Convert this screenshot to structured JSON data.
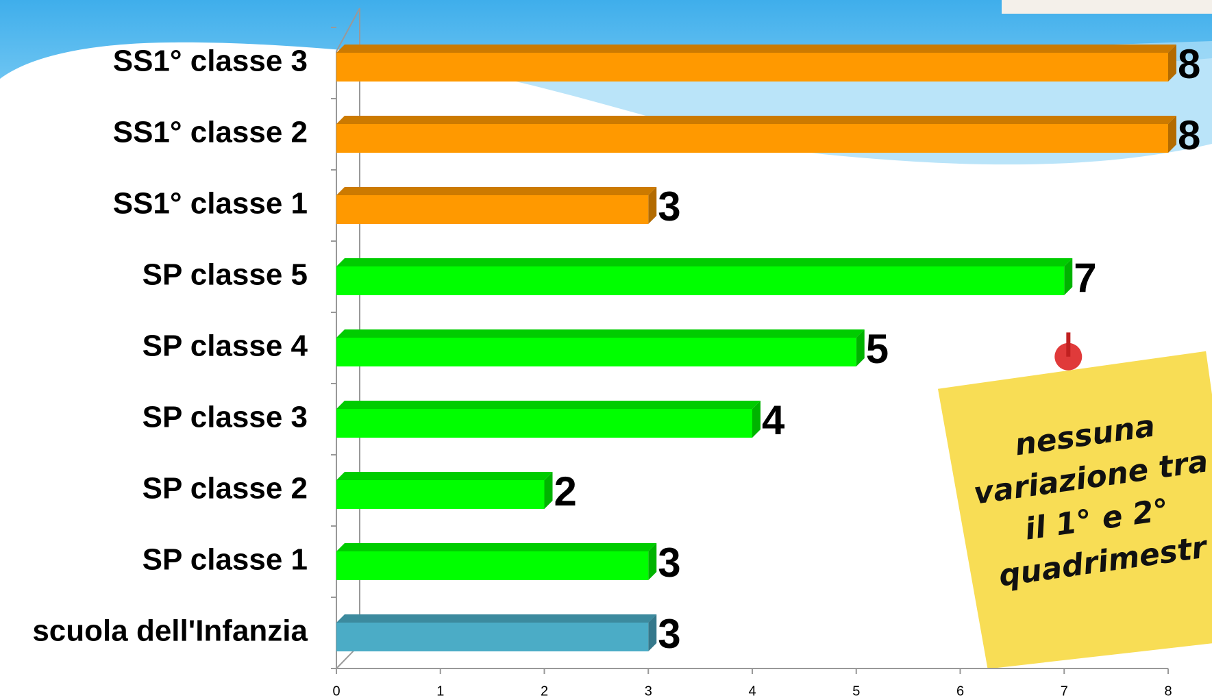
{
  "chart_data": {
    "type": "bar",
    "orientation": "horizontal",
    "categories": [
      "scuola dell'Infanzia",
      "SP classe 1",
      "SP classe 2",
      "SP classe 3",
      "SP classe 4",
      "SP classe 5",
      "SS1° classe 1",
      "SS1° classe 2",
      "SS1° classe 3"
    ],
    "values": [
      3,
      3,
      2,
      4,
      5,
      7,
      3,
      8,
      8
    ],
    "colors": [
      "#4BACC6",
      "#00FF00",
      "#00FF00",
      "#00FF00",
      "#00FF00",
      "#00FF00",
      "#FF9900",
      "#FF9900",
      "#FF9900"
    ],
    "xlim": [
      0,
      8
    ],
    "xticks": [
      0,
      1,
      2,
      3,
      4,
      5,
      6,
      7,
      8
    ],
    "annotation": [
      "nessuna",
      "variazione tra",
      "il 1° e 2°",
      "quadrimestr"
    ]
  }
}
